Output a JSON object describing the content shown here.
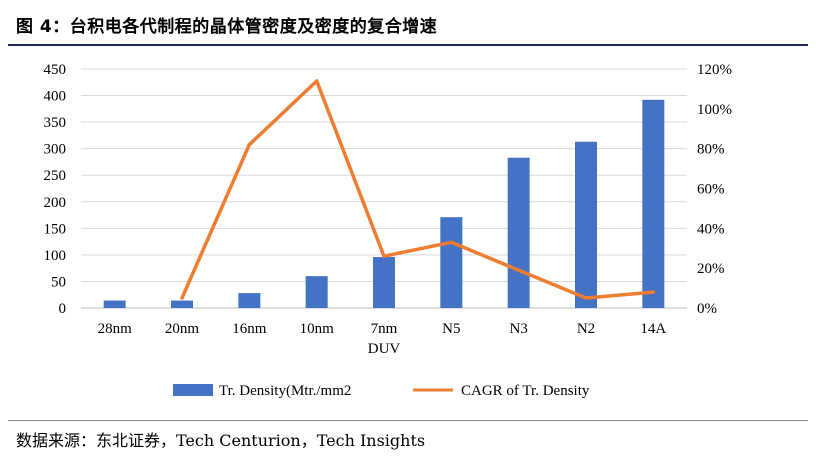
{
  "figure_title": "图 4：台积电各代制程的晶体管密度及密度的复合增速",
  "source_text": "数据来源：东北证券，Tech Centurion，Tech Insights",
  "colors": {
    "bar": "#4472c4",
    "line": "#ed7d31",
    "title_rule": "#1f2a5c"
  },
  "chart_data": {
    "type": "bar",
    "categories": [
      "28nm",
      "20nm",
      "16nm",
      "10nm",
      "7nm DUV",
      "N5",
      "N3",
      "N2",
      "14A"
    ],
    "category_lines": [
      [
        "28nm"
      ],
      [
        "20nm"
      ],
      [
        "16nm"
      ],
      [
        "10nm"
      ],
      [
        "7nm",
        "DUV"
      ],
      [
        "N5"
      ],
      [
        "N3"
      ],
      [
        "N2"
      ],
      [
        "14A"
      ]
    ],
    "series": [
      {
        "name": "Tr. Density(Mtr./mm2",
        "kind": "bar",
        "axis": "left",
        "values": [
          14,
          14,
          28,
          60,
          96,
          171,
          283,
          313,
          392
        ]
      },
      {
        "name": "CAGR of Tr. Density",
        "kind": "line",
        "axis": "right",
        "values": [
          null,
          0.05,
          0.82,
          1.14,
          0.26,
          0.33,
          0.19,
          0.05,
          0.08
        ]
      }
    ],
    "y_left": {
      "lim": [
        0,
        450
      ],
      "ticks": [
        "0",
        "50",
        "100",
        "150",
        "200",
        "250",
        "300",
        "350",
        "400",
        "450"
      ]
    },
    "y_right": {
      "lim": [
        0,
        1.2
      ],
      "ticks": [
        "0%",
        "20%",
        "40%",
        "60%",
        "80%",
        "100%",
        "120%"
      ]
    },
    "grid": true,
    "legend_position": "bottom"
  }
}
